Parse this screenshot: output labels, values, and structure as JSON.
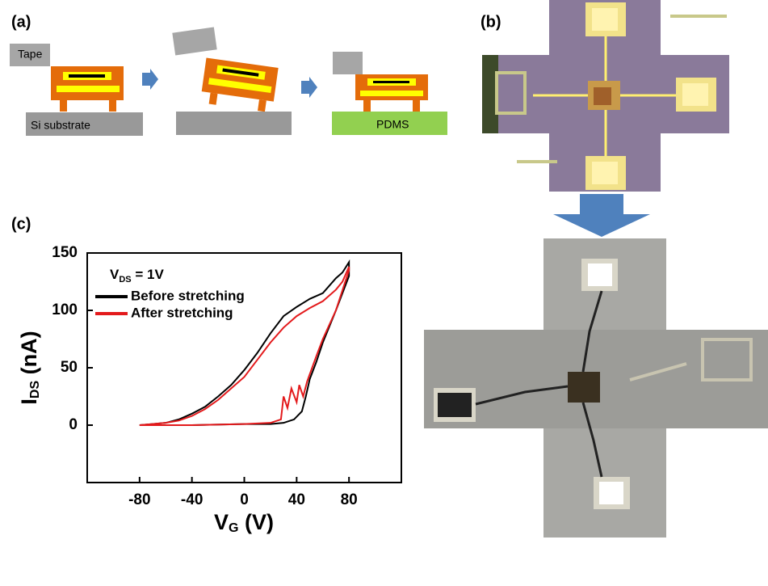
{
  "panels": {
    "a": {
      "label": "(a)",
      "tape": "Tape",
      "substrate": "Si substrate",
      "pdms": "PDMS"
    },
    "b": {
      "label": "(b)"
    },
    "c": {
      "label": "(c)"
    }
  },
  "chart_data": {
    "type": "line",
    "x_label": {
      "text": "V",
      "subscript": "G",
      "suffix": " (V)"
    },
    "y_label": {
      "text": "I",
      "subscript": "DS",
      "suffix": " (nA)"
    },
    "legend_title": {
      "text": "V",
      "subscript": "DS",
      "suffix": " = 1V"
    },
    "xlim": [
      -120,
      120
    ],
    "xticks": [
      -80,
      -40,
      0,
      40,
      80
    ],
    "ylim": [
      -50,
      150
    ],
    "yticks": [
      0,
      50,
      100,
      150
    ],
    "legend": "upper left",
    "series": [
      {
        "name": "Before stretching",
        "color": "#000000",
        "x": [
          -80,
          -40,
          0,
          20,
          30,
          38,
          44,
          47,
          50,
          55,
          60,
          70,
          80,
          80,
          75,
          70,
          60,
          50,
          40,
          30,
          20,
          10,
          0,
          -10,
          -20,
          -30,
          -40,
          -50,
          -60,
          -70,
          -80
        ],
        "values": [
          0,
          0,
          1,
          1,
          2,
          5,
          12,
          25,
          40,
          55,
          72,
          100,
          130,
          142,
          133,
          128,
          115,
          110,
          103,
          95,
          80,
          63,
          48,
          35,
          25,
          16,
          10,
          5,
          2,
          1,
          0
        ]
      },
      {
        "name": "After stretching",
        "color": "#e31a1c",
        "x": [
          -80,
          -40,
          0,
          20,
          28,
          30,
          33,
          36,
          40,
          42,
          45,
          48,
          55,
          60,
          70,
          80,
          80,
          75,
          70,
          60,
          50,
          40,
          30,
          20,
          10,
          0,
          -10,
          -20,
          -30,
          -40,
          -50,
          -60,
          -70,
          -80
        ],
        "values": [
          0,
          0,
          1,
          2,
          5,
          25,
          15,
          32,
          20,
          35,
          25,
          38,
          60,
          75,
          100,
          135,
          138,
          125,
          118,
          108,
          102,
          95,
          85,
          72,
          57,
          42,
          32,
          22,
          14,
          8,
          4,
          2,
          1,
          0
        ]
      }
    ]
  }
}
